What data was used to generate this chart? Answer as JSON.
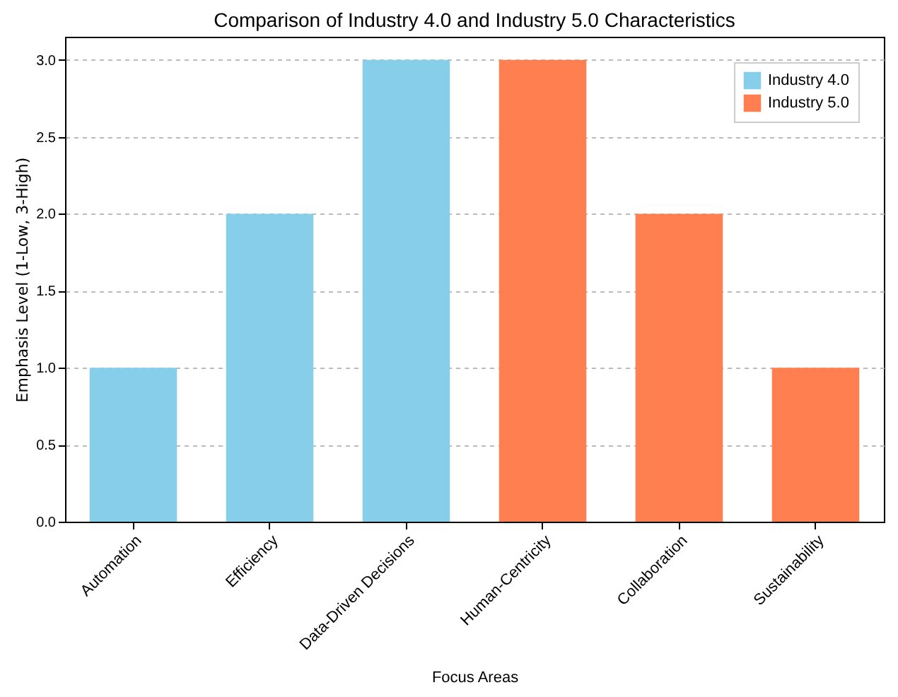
{
  "chart_data": {
    "type": "bar",
    "title": "Comparison of Industry 4.0 and Industry 5.0 Characteristics",
    "xlabel": "Focus Areas",
    "ylabel": "Emphasis Level (1-Low, 3-High)",
    "categories": [
      "Automation",
      "Efficiency",
      "Data-Driven Decisions",
      "Human-Centricity",
      "Collaboration",
      "Sustainability"
    ],
    "series": [
      {
        "name": "Industry 4.0",
        "color": "#87ceeb",
        "values": [
          1,
          2,
          3,
          null,
          null,
          null
        ]
      },
      {
        "name": "Industry 5.0",
        "color": "#ff7f50",
        "values": [
          null,
          null,
          null,
          3,
          2,
          1
        ]
      }
    ],
    "ylim": [
      0,
      3.15
    ],
    "yticks": [
      {
        "value": 0,
        "label": "0.0"
      },
      {
        "value": 0.5,
        "label": "0.5"
      },
      {
        "value": 1,
        "label": "1.0"
      },
      {
        "value": 1.5,
        "label": "1.5"
      },
      {
        "value": 2,
        "label": "2.0"
      },
      {
        "value": 2.5,
        "label": "2.5"
      },
      {
        "value": 3,
        "label": "3.0"
      }
    ],
    "grid": "y",
    "legend": "top right"
  }
}
